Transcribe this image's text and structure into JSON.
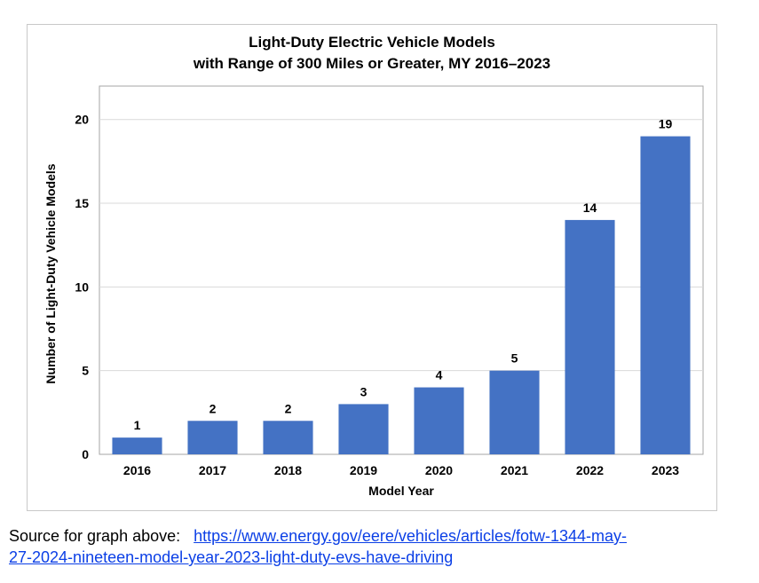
{
  "chart_data": {
    "type": "bar",
    "title_line1": "Light-Duty Electric Vehicle Models",
    "title_line2": "with Range of 300 Miles or Greater, MY 2016–2023",
    "xlabel": "Model Year",
    "ylabel": "Number of Light-Duty Vehicle Models",
    "categories": [
      "2016",
      "2017",
      "2018",
      "2019",
      "2020",
      "2021",
      "2022",
      "2023"
    ],
    "values": [
      1,
      2,
      2,
      3,
      4,
      5,
      14,
      19
    ],
    "ylim": [
      0,
      22
    ],
    "yticks": [
      0,
      5,
      10,
      15,
      20
    ],
    "bar_color": "#4472c4",
    "grid": true,
    "data_labels": true
  },
  "source": {
    "prefix": "Source for graph above:",
    "link_line1": "https://www.energy.gov/eere/vehicles/articles/fotw-1344-may-",
    "link_line2": "27-2024-nineteen-model-year-2023-light-duty-evs-have-driving"
  }
}
